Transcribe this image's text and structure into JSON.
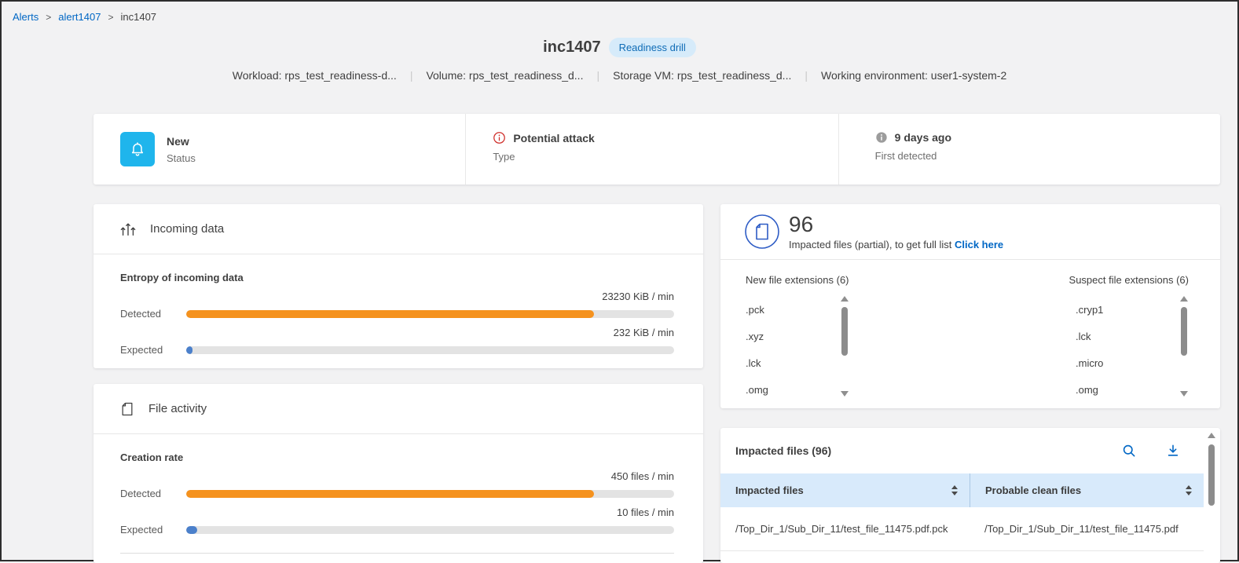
{
  "breadcrumb": {
    "items": [
      {
        "label": "Alerts"
      },
      {
        "label": "alert1407"
      },
      {
        "label": "inc1407"
      }
    ],
    "separator": ">"
  },
  "header": {
    "title": "inc1407",
    "badge": "Readiness drill",
    "meta": [
      "Workload: rps_test_readiness-d...",
      "Volume: rps_test_readiness_d...",
      "Storage VM: rps_test_readiness_d...",
      "Working environment: user1-system-2"
    ]
  },
  "status_card": {
    "items": [
      {
        "icon": "bell-icon",
        "value": "New",
        "label": "Status"
      },
      {
        "icon": "alert-circle-icon",
        "value": "Potential attack",
        "label": "Type"
      },
      {
        "icon": "info-icon",
        "value": "9 days ago",
        "label": "First detected"
      }
    ]
  },
  "incoming_data": {
    "title": "Incoming data",
    "section_title": "Entropy of incoming data",
    "bars": [
      {
        "label": "Detected",
        "value": "23230 KiB / min",
        "pct": 83.6,
        "color": "#f5921e"
      },
      {
        "label": "Expected",
        "value": "232 KiB / min",
        "pct": 1.3,
        "color": "#4b80cb"
      }
    ]
  },
  "file_activity": {
    "title": "File activity",
    "section_title": "Creation rate",
    "bars": [
      {
        "label": "Detected",
        "value": "450 files / min",
        "pct": 83.6,
        "color": "#f5921e"
      },
      {
        "label": "Expected",
        "value": "10 files / min",
        "pct": 2.2,
        "color": "#4b80cb"
      }
    ]
  },
  "impacted_summary": {
    "count": "96",
    "caption": "Impacted files (partial), to get full list",
    "link_label": "Click here"
  },
  "extensions": {
    "new": {
      "heading": "New file extensions (6)",
      "items": [
        ".pck",
        ".xyz",
        ".lck",
        ".omg"
      ]
    },
    "suspect": {
      "heading": "Suspect file extensions (6)",
      "items": [
        ".cryp1",
        ".lck",
        ".micro",
        ".omg"
      ]
    }
  },
  "impacted_table": {
    "heading": "Impacted files (96)",
    "columns": [
      "Impacted files",
      "Probable clean files"
    ],
    "rows": [
      [
        "/Top_Dir_1/Sub_Dir_11/test_file_11475.pdf.pck",
        "/Top_Dir_1/Sub_Dir_11/test_file_11475.pdf"
      ]
    ]
  },
  "colors": {
    "accent_blue": "#0067c5",
    "detected_orange": "#f5921e",
    "expected_blue": "#4b80cb",
    "bell_tile_bg": "#1fb5ec",
    "badge_bg": "#d6ebfa",
    "table_header_bg": "#d8eafb",
    "alert_red": "#d0312d",
    "info_gray": "#9c9c9c",
    "page_bg": "#f2f2f3"
  }
}
